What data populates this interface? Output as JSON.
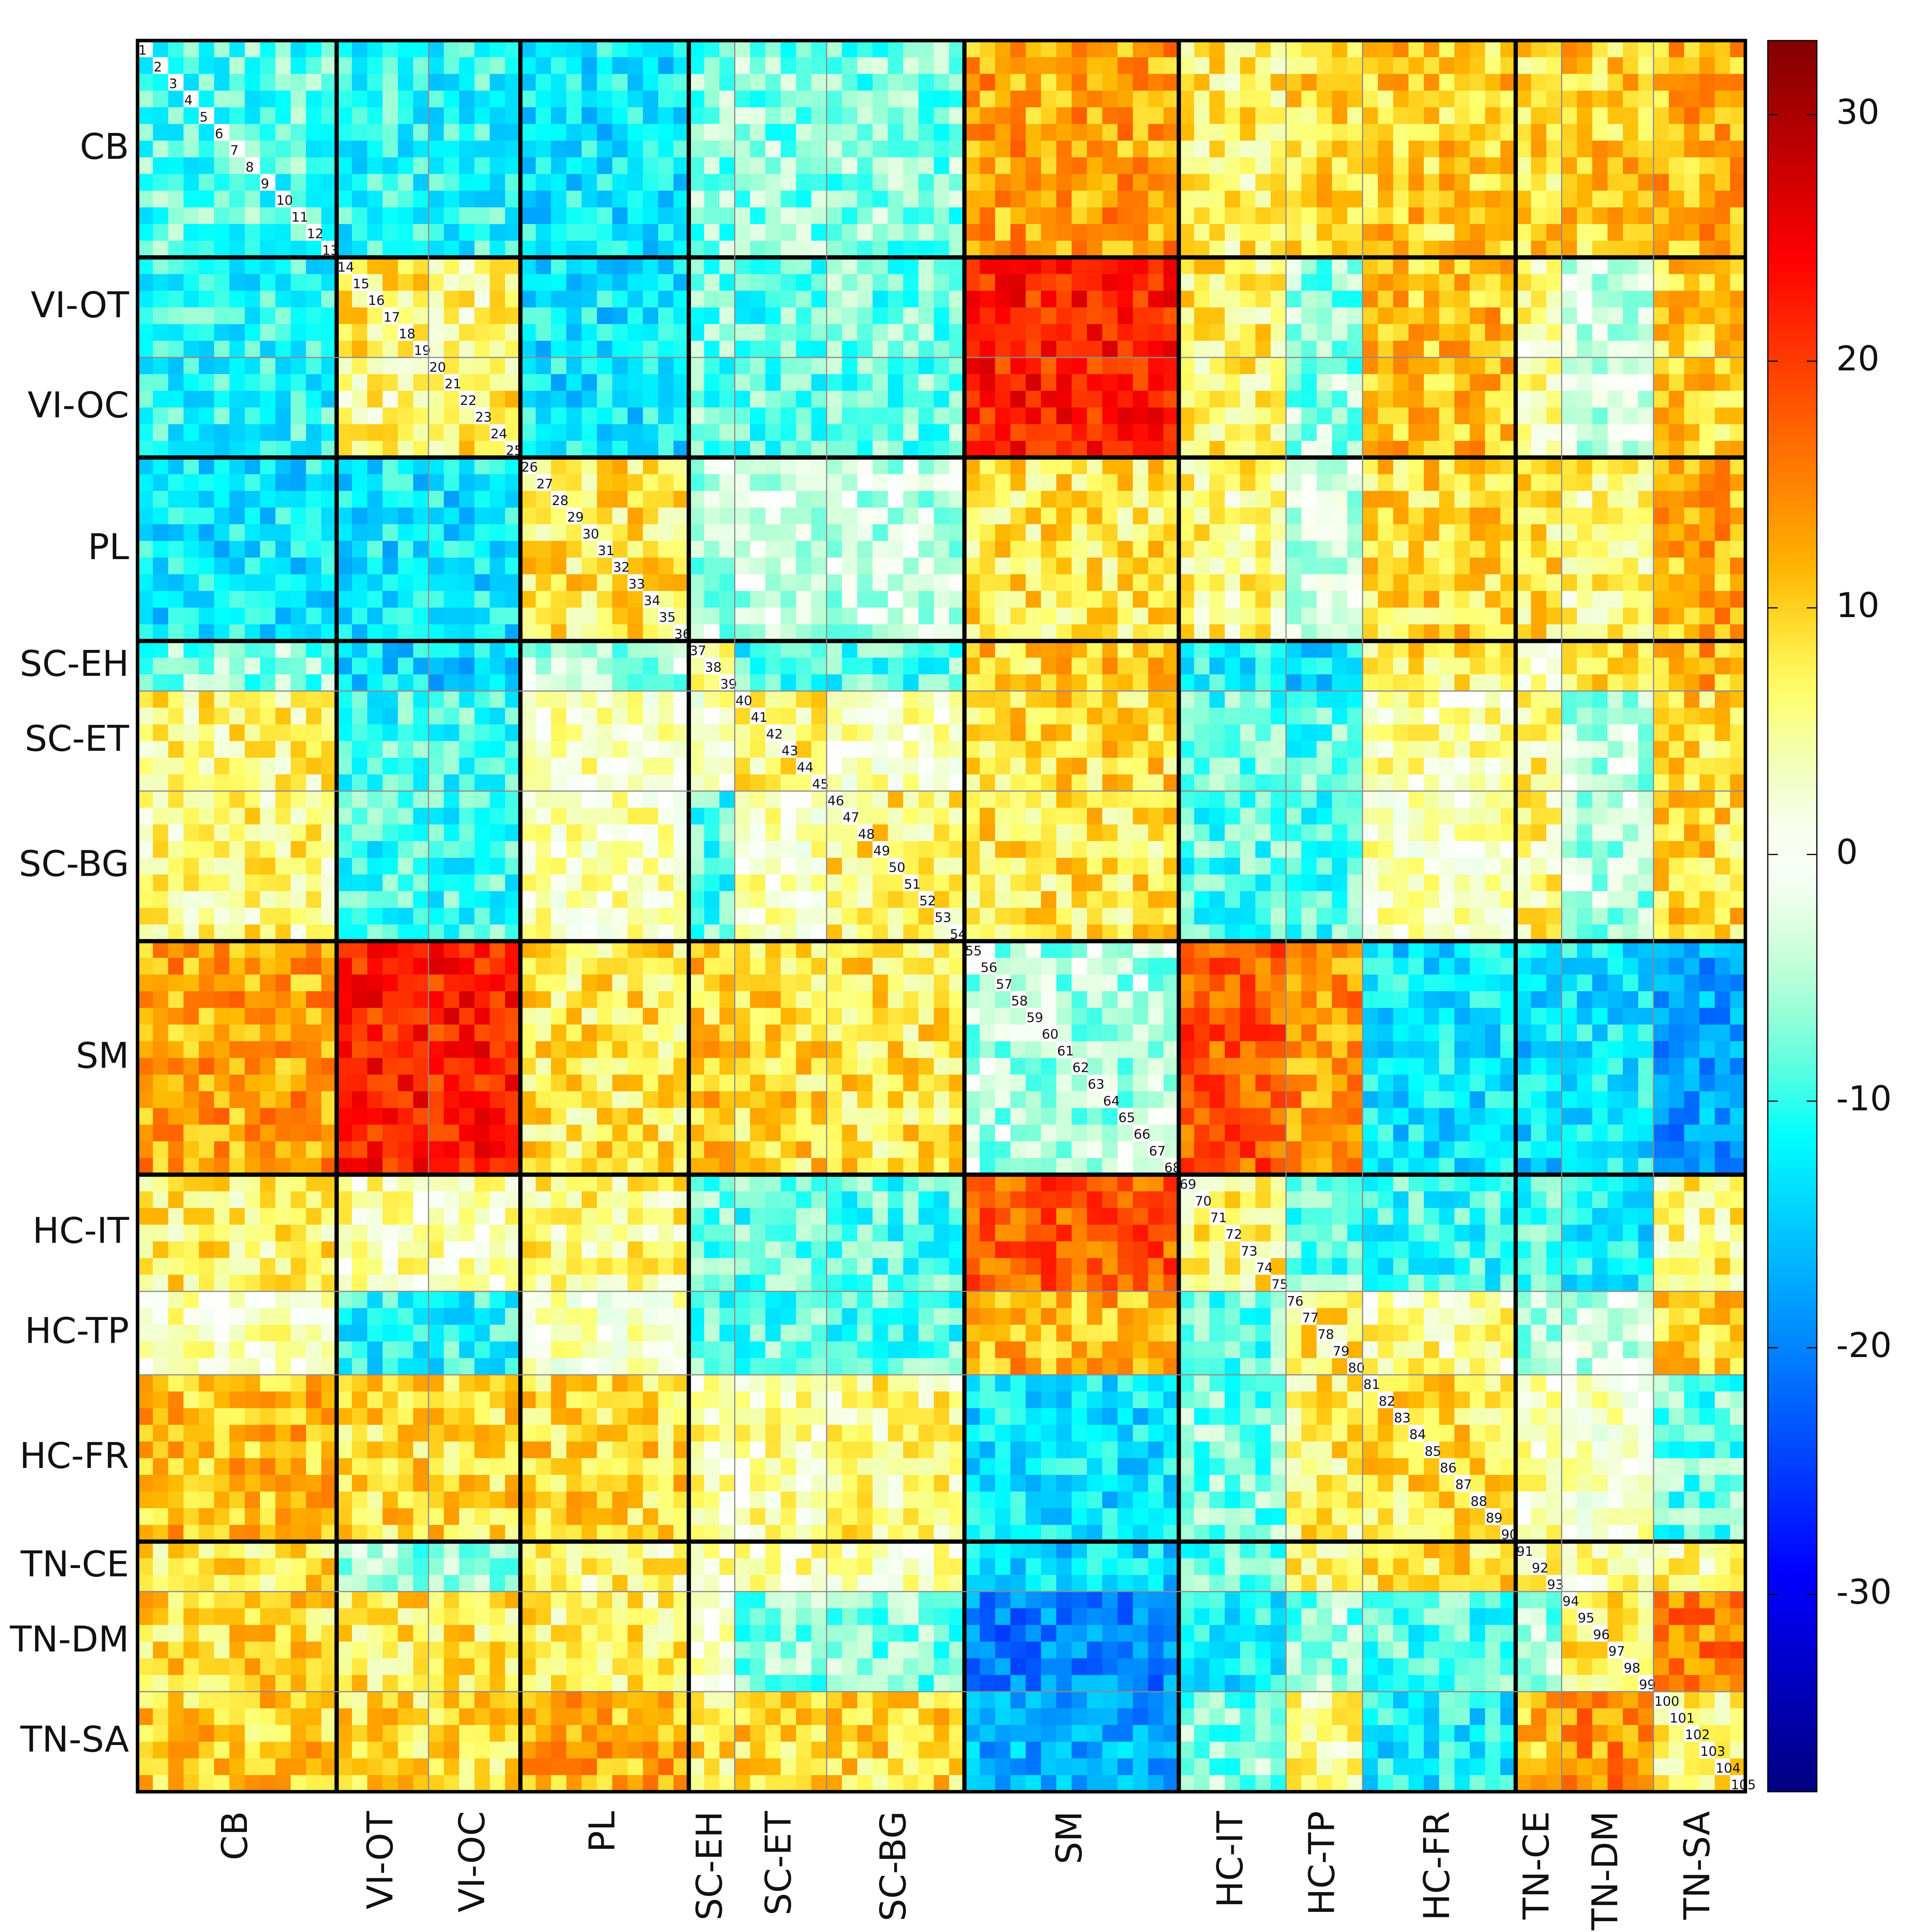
{
  "chart_data": {
    "type": "heatmap",
    "n": 105,
    "networks": [
      {
        "label": "CB",
        "start": 1,
        "end": 13,
        "major_end": true
      },
      {
        "label": "VI-OT",
        "start": 14,
        "end": 19,
        "major_end": false
      },
      {
        "label": "VI-OC",
        "start": 20,
        "end": 25,
        "major_end": true
      },
      {
        "label": "PL",
        "start": 26,
        "end": 36,
        "major_end": true
      },
      {
        "label": "SC-EH",
        "start": 37,
        "end": 39,
        "major_end": false
      },
      {
        "label": "SC-ET",
        "start": 40,
        "end": 45,
        "major_end": false
      },
      {
        "label": "SC-BG",
        "start": 46,
        "end": 54,
        "major_end": true
      },
      {
        "label": "SM",
        "start": 55,
        "end": 68,
        "major_end": true
      },
      {
        "label": "HC-IT",
        "start": 69,
        "end": 75,
        "major_end": false
      },
      {
        "label": "HC-TP",
        "start": 76,
        "end": 80,
        "major_end": false
      },
      {
        "label": "HC-FR",
        "start": 81,
        "end": 90,
        "major_end": true
      },
      {
        "label": "TN-CE",
        "start": 91,
        "end": 93,
        "major_end": false
      },
      {
        "label": "TN-DM",
        "start": 94,
        "end": 99,
        "major_end": false
      },
      {
        "label": "TN-SA",
        "start": 100,
        "end": 105,
        "major_end": true
      }
    ],
    "block_values": [
      [
        -9,
        -11,
        -11,
        -13,
        -7,
        -7,
        -7,
        13,
        7,
        9,
        10,
        9,
        10,
        12
      ],
      [
        -11,
        7,
        6,
        -13,
        -8,
        -9,
        -8,
        22,
        7,
        -6,
        11,
        5,
        -3,
        10
      ],
      [
        -11,
        6,
        7,
        -13,
        -8,
        -9,
        -8,
        22,
        7,
        -6,
        11,
        5,
        -3,
        10
      ],
      [
        -13,
        -13,
        -13,
        8,
        -5,
        -4,
        -4,
        8,
        6,
        -3,
        9,
        8,
        6,
        12
      ],
      [
        -7,
        -14,
        -14,
        -5,
        5,
        -10,
        -9,
        10,
        -12,
        -14,
        8,
        4,
        8,
        12
      ],
      [
        6,
        -10,
        -10,
        3,
        2,
        6,
        3,
        9,
        -9,
        -9,
        4,
        6,
        -5,
        9
      ],
      [
        6,
        -10,
        -10,
        3,
        -9,
        3,
        7,
        8,
        -9,
        -9,
        3,
        6,
        -5,
        9
      ],
      [
        13,
        22,
        22,
        8,
        10,
        9,
        8,
        -5,
        18,
        14,
        -13,
        -14,
        -13,
        -18
      ],
      [
        7,
        4,
        4,
        6,
        -8,
        -9,
        -9,
        18,
        7,
        -8,
        -10,
        -10,
        -12,
        6
      ],
      [
        3,
        -11,
        -11,
        2,
        -9,
        -9,
        -9,
        12,
        -8,
        7,
        5,
        -5,
        -3,
        10
      ],
      [
        11,
        9,
        9,
        9,
        5,
        4,
        6,
        -13,
        -7,
        7,
        8,
        4,
        2,
        -8
      ],
      [
        8,
        -6,
        -6,
        6,
        5,
        4,
        3,
        -14,
        -9,
        7,
        9,
        6,
        4,
        6
      ],
      [
        9,
        8,
        8,
        7,
        2,
        -7,
        -7,
        -20,
        -12,
        -6,
        -9,
        -6,
        8,
        15
      ],
      [
        10,
        9,
        9,
        12,
        8,
        9,
        9,
        -17,
        -7,
        6,
        -12,
        11,
        14,
        7
      ]
    ],
    "colorbar": {
      "colormap": "jet",
      "vmin": -38,
      "vmax": 33,
      "ticks": [
        30,
        20,
        10,
        0,
        -10,
        -20,
        -30
      ],
      "tick_labels": [
        "30",
        "20",
        "10",
        "0",
        "-10",
        "-20",
        "-30"
      ]
    },
    "diagonal_labels": true,
    "grid": "network boundary lines"
  }
}
